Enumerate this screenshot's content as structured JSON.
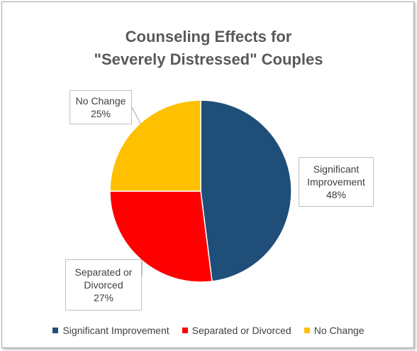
{
  "chart_data": {
    "type": "pie",
    "title": [
      "Counseling Effects for",
      "\"Severely Distressed\" Couples"
    ],
    "slices": [
      {
        "name": "Significant Improvement",
        "value": 48,
        "color": "#1f4e79",
        "label_lines": [
          "Significant",
          "Improvement",
          "48%"
        ]
      },
      {
        "name": "Separated or Divorced",
        "value": 27,
        "color": "#ff0000",
        "label_lines": [
          "Separated or",
          "Divorced",
          "27%"
        ]
      },
      {
        "name": "No Change",
        "value": 25,
        "color": "#ffc000",
        "label_lines": [
          "No Change",
          "25%"
        ]
      }
    ],
    "legend_position": "bottom"
  }
}
